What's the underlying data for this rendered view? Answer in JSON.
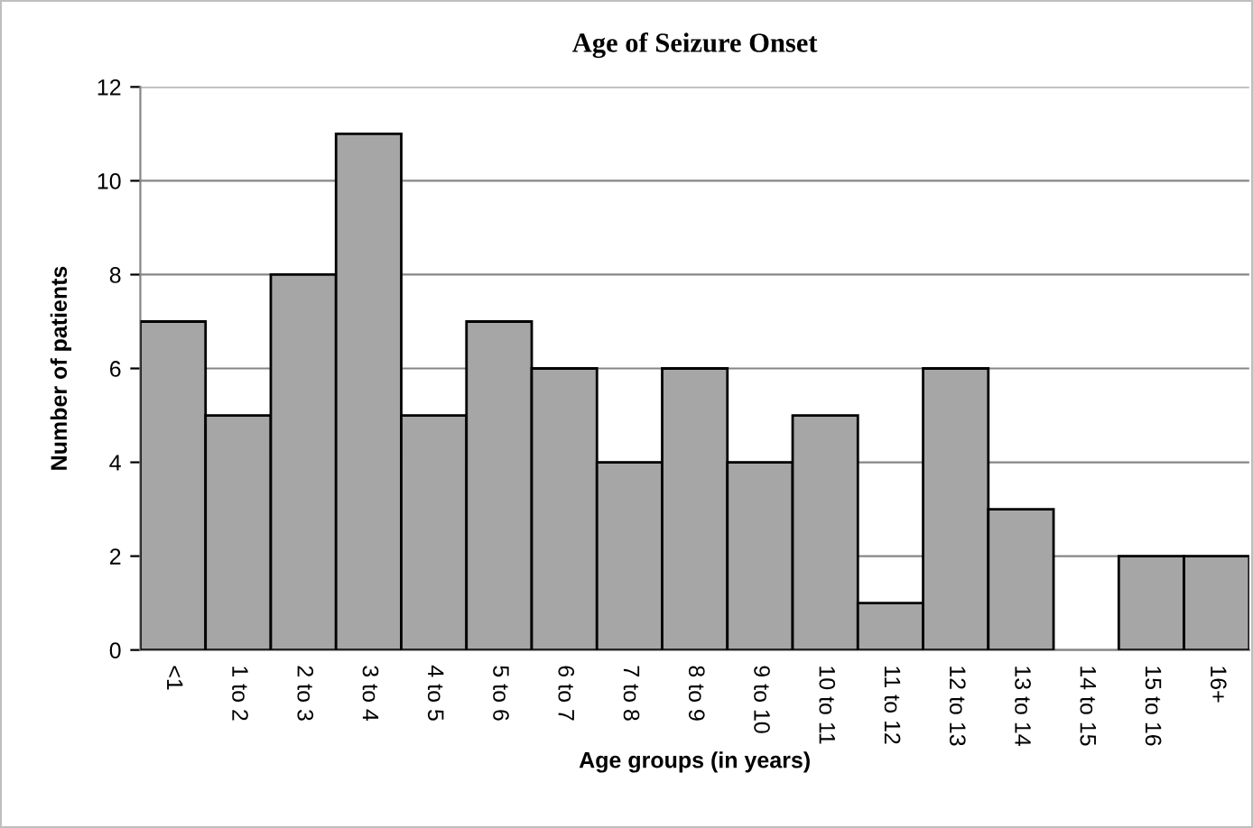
{
  "chart_data": {
    "type": "bar",
    "title": "Age of Seizure Onset",
    "xlabel": "Age groups (in years)",
    "ylabel": "Number of patients",
    "categories": [
      "<1",
      "1 to 2",
      "2 to 3",
      "3 to 4",
      "4 to 5",
      "5 to 6",
      "6 to 7",
      "7 to 8",
      "8 to 9",
      "9 to 10",
      "10 to 11",
      "11 to 12",
      "12 to 13",
      "13 to 14",
      "14 to 15",
      "15 to 16",
      "16+"
    ],
    "values": [
      7,
      5,
      8,
      11,
      5,
      7,
      6,
      4,
      6,
      4,
      5,
      1,
      6,
      3,
      0,
      2,
      2
    ],
    "color": "#a6a6a6",
    "ylim": [
      0,
      12
    ],
    "yticks": [
      0,
      2,
      4,
      6,
      8,
      10,
      12
    ],
    "grid": "y"
  }
}
